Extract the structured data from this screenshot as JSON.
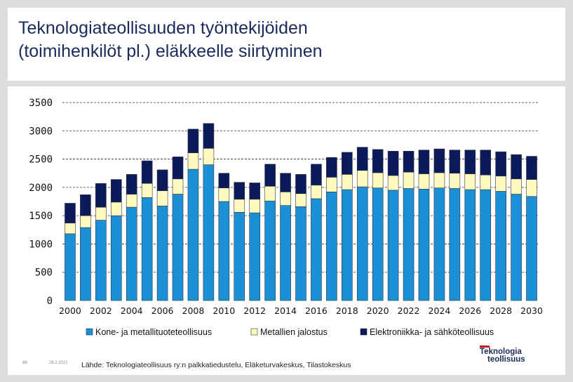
{
  "page": {
    "title_line1": "Teknologiateollisuuden työntekijöiden",
    "title_line2": "(toimihenkilöt pl.) eläkkeelle siirtyminen",
    "slide_number": "88",
    "date": "28.2.2021",
    "source": "Lähde: Teknologiateollisuus ry:n palkkatiedustelu, Eläketurvakeskus, Tilastokeskus",
    "logo_line1": "Teknologia",
    "logo_line2": "teollisuus"
  },
  "colors": {
    "kone": "#1b8fd8",
    "metalli": "#fffbc0",
    "elektro": "#0a1a5a",
    "logo_accent": "#cc1d27"
  },
  "chart_data": {
    "type": "bar",
    "stacked": true,
    "title": "",
    "xlabel": "",
    "ylabel": "",
    "ylim": [
      0,
      3500
    ],
    "yticks": [
      0,
      500,
      1000,
      1500,
      2000,
      2500,
      3000,
      3500
    ],
    "grid": "horizontal dashed",
    "legend_position": "bottom",
    "categories": [
      "2000",
      "2001",
      "2002",
      "2003",
      "2004",
      "2005",
      "2006",
      "2007",
      "2008",
      "2009",
      "2010",
      "2011",
      "2012",
      "2013",
      "2014",
      "2015",
      "2016",
      "2017",
      "2018",
      "2019",
      "2020",
      "2021",
      "2022",
      "2023",
      "2024",
      "2025",
      "2026",
      "2027",
      "2028",
      "2029",
      "2030"
    ],
    "xtick_labels": [
      "2000",
      "2002",
      "2004",
      "2006",
      "2008",
      "2010",
      "2012",
      "2014",
      "2016",
      "2018",
      "2020",
      "2022",
      "2024",
      "2026",
      "2028",
      "2030"
    ],
    "series": [
      {
        "name": "Kone- ja metallituoteteollisuus",
        "color_key": "kone",
        "values": [
          1180,
          1290,
          1420,
          1500,
          1650,
          1820,
          1670,
          1880,
          2320,
          2400,
          1750,
          1560,
          1550,
          1760,
          1680,
          1660,
          1800,
          1920,
          1960,
          2010,
          1990,
          1950,
          1980,
          1970,
          1990,
          1980,
          1960,
          1960,
          1930,
          1880,
          1840
        ]
      },
      {
        "name": "Metallien jalostus",
        "color_key": "metalli",
        "values": [
          190,
          210,
          230,
          240,
          230,
          250,
          270,
          270,
          290,
          290,
          240,
          230,
          240,
          260,
          240,
          230,
          240,
          260,
          270,
          290,
          270,
          260,
          290,
          270,
          270,
          270,
          280,
          260,
          270,
          270,
          300
        ]
      },
      {
        "name": "Elektroniikka- ja sähköteollisuus",
        "color_key": "elektro",
        "values": [
          350,
          370,
          420,
          400,
          350,
          400,
          370,
          390,
          420,
          440,
          260,
          300,
          290,
          390,
          330,
          340,
          370,
          350,
          390,
          410,
          410,
          430,
          370,
          420,
          420,
          410,
          420,
          440,
          430,
          430,
          410
        ]
      }
    ]
  }
}
